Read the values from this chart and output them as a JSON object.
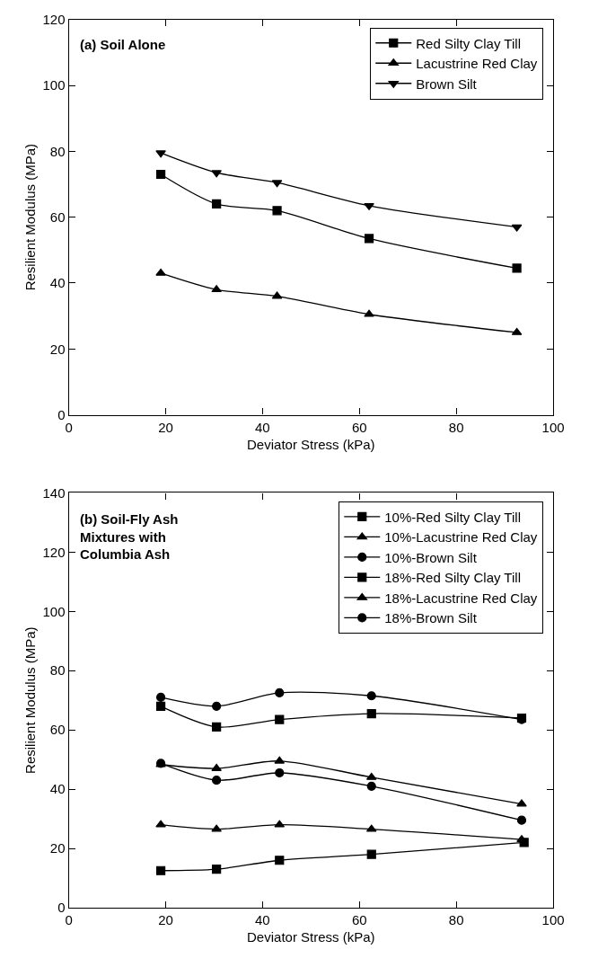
{
  "chart_data": [
    {
      "type": "line",
      "title": "(a) Soil Alone",
      "xlabel": "Deviator Stress (kPa)",
      "ylabel": "Resilient Modulus (MPa)",
      "xlim": [
        0,
        100
      ],
      "xticks": [
        0,
        20,
        40,
        60,
        80,
        100
      ],
      "ylim": [
        0,
        120
      ],
      "yticks": [
        0,
        20,
        40,
        60,
        80,
        100,
        120
      ],
      "x": [
        19,
        30.5,
        43,
        62,
        92.5
      ],
      "grid": false,
      "legend": "top right",
      "line_style": "solid",
      "series": [
        {
          "name": "Red Silty Clay Till",
          "color": "#000000",
          "marker": "square",
          "values": [
            73,
            64,
            62,
            53.5,
            44.5
          ]
        },
        {
          "name": "Lacustrine Red Clay",
          "color": "#000000",
          "marker": "triangle",
          "values": [
            43,
            38,
            36,
            30.5,
            25
          ]
        },
        {
          "name": "Brown Silt",
          "color": "#000000",
          "marker": "triangle-down",
          "values": [
            79.5,
            73.5,
            70.5,
            63.5,
            57
          ]
        }
      ]
    },
    {
      "type": "line",
      "title": "(b) Soil-Fly Ash Mixtures with Columbia Ash",
      "xlabel": "Deviator Stress (kPa)",
      "ylabel": "Resilient Modulus (MPa)",
      "xlim": [
        0,
        100
      ],
      "xticks": [
        0,
        20,
        40,
        60,
        80,
        100
      ],
      "ylim": [
        0,
        140
      ],
      "yticks": [
        0,
        20,
        40,
        60,
        80,
        100,
        120,
        140
      ],
      "x": [
        19,
        30.5,
        43.5,
        62.5,
        93.5
      ],
      "grid": false,
      "legend": "top right",
      "line_style": "solid",
      "series": [
        {
          "name": "10%-Red Silty Clay Till",
          "color": "#000000",
          "marker": "square",
          "x": [
            19,
            30.5,
            43.5,
            62.5,
            94
          ],
          "values": [
            12.5,
            13,
            16,
            18,
            22
          ]
        },
        {
          "name": "10%-Lacustrine Red Clay",
          "color": "#000000",
          "marker": "triangle",
          "values": [
            28,
            26.5,
            28,
            26.5,
            23
          ]
        },
        {
          "name": "10%-Brown Silt",
          "color": "#000000",
          "marker": "circle",
          "values": [
            48.7,
            43,
            45.5,
            41,
            29.5
          ]
        },
        {
          "name": "18%-Red Silty Clay Till",
          "color": "#000000",
          "marker": "square",
          "values": [
            68,
            61,
            63.5,
            65.5,
            64
          ]
        },
        {
          "name": "18%-Lacustrine Red Clay",
          "color": "#000000",
          "marker": "triangle",
          "values": [
            48.3,
            47,
            49.5,
            44,
            35
          ]
        },
        {
          "name": "18%-Brown Silt",
          "color": "#000000",
          "marker": "circle",
          "values": [
            71,
            68,
            72.5,
            71.5,
            63.5
          ]
        }
      ]
    }
  ]
}
